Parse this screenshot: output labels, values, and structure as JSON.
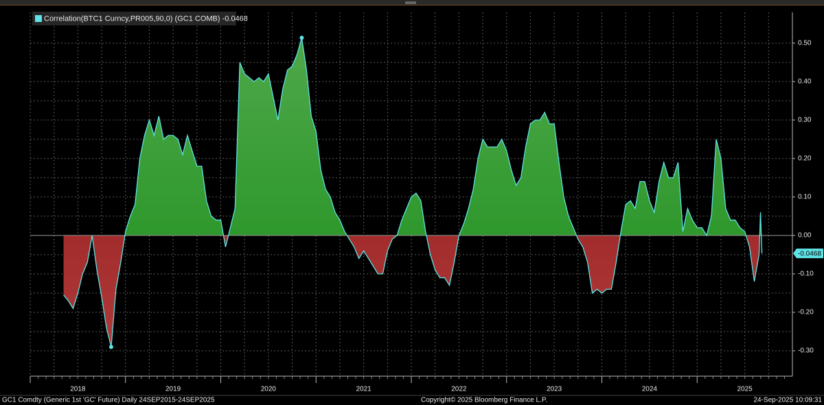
{
  "chart_data": {
    "type": "area",
    "legend_name": "Correlation(BTC1 Curncy,PR005,90,0) (GC1 COMB)",
    "footer_left": "GC1 Comdty (Generic 1st 'GC' Future)  Daily 24SEP2015-24SEP2025",
    "footer_center": "Copyright© 2025 Bloomberg Finance L.P.",
    "footer_right": "24-Sep-2025 10:09:31",
    "x": [
      2018.35,
      2018.4,
      2018.45,
      2018.5,
      2018.55,
      2018.6,
      2018.65,
      2018.7,
      2018.75,
      2018.8,
      2018.85,
      2018.9,
      2018.95,
      2019.0,
      2019.05,
      2019.1,
      2019.15,
      2019.2,
      2019.25,
      2019.3,
      2019.35,
      2019.4,
      2019.45,
      2019.5,
      2019.55,
      2019.6,
      2019.65,
      2019.7,
      2019.75,
      2019.8,
      2019.85,
      2019.9,
      2019.95,
      2020.0,
      2020.05,
      2020.1,
      2020.15,
      2020.2,
      2020.25,
      2020.3,
      2020.35,
      2020.4,
      2020.45,
      2020.5,
      2020.55,
      2020.6,
      2020.65,
      2020.7,
      2020.75,
      2020.8,
      2020.85,
      2020.9,
      2020.95,
      2021.0,
      2021.05,
      2021.1,
      2021.15,
      2021.2,
      2021.25,
      2021.3,
      2021.35,
      2021.4,
      2021.45,
      2021.5,
      2021.55,
      2021.6,
      2021.65,
      2021.7,
      2021.75,
      2021.8,
      2021.85,
      2021.9,
      2021.95,
      2022.0,
      2022.05,
      2022.1,
      2022.15,
      2022.2,
      2022.25,
      2022.3,
      2022.35,
      2022.4,
      2022.45,
      2022.5,
      2022.55,
      2022.6,
      2022.65,
      2022.7,
      2022.75,
      2022.8,
      2022.85,
      2022.9,
      2022.95,
      2023.0,
      2023.05,
      2023.1,
      2023.15,
      2023.2,
      2023.25,
      2023.3,
      2023.35,
      2023.4,
      2023.45,
      2023.5,
      2023.55,
      2023.6,
      2023.65,
      2023.7,
      2023.75,
      2023.8,
      2023.85,
      2023.9,
      2023.95,
      2024.0,
      2024.05,
      2024.1,
      2024.15,
      2024.2,
      2024.25,
      2024.3,
      2024.35,
      2024.4,
      2024.45,
      2024.5,
      2024.55,
      2024.6,
      2024.65,
      2024.7,
      2024.75,
      2024.8,
      2024.85,
      2024.9,
      2024.95,
      2025.0,
      2025.05,
      2025.1,
      2025.15,
      2025.2,
      2025.25,
      2025.3,
      2025.35,
      2025.4,
      2025.45,
      2025.5,
      2025.55,
      2025.6,
      2025.65,
      2025.665,
      2025.68
    ],
    "series": [
      {
        "name": "Correlation(BTC1 Curncy,PR005,90,0) (GC1 COMB)",
        "color": "#5fe3e6",
        "values": [
          -0.155,
          -0.17,
          -0.19,
          -0.15,
          -0.1,
          -0.07,
          0.0,
          -0.09,
          -0.16,
          -0.24,
          -0.29,
          -0.14,
          -0.07,
          0.01,
          0.05,
          0.08,
          0.2,
          0.26,
          0.3,
          0.26,
          0.31,
          0.25,
          0.26,
          0.26,
          0.25,
          0.21,
          0.26,
          0.22,
          0.18,
          0.18,
          0.09,
          0.05,
          0.04,
          0.04,
          -0.03,
          0.02,
          0.07,
          0.45,
          0.42,
          0.41,
          0.4,
          0.41,
          0.4,
          0.42,
          0.36,
          0.3,
          0.38,
          0.43,
          0.44,
          0.47,
          0.514,
          0.43,
          0.31,
          0.27,
          0.17,
          0.12,
          0.1,
          0.06,
          0.04,
          0.01,
          -0.01,
          -0.03,
          -0.06,
          -0.04,
          -0.06,
          -0.08,
          -0.1,
          -0.1,
          -0.04,
          -0.01,
          0.0,
          0.04,
          0.07,
          0.1,
          0.11,
          0.09,
          0.01,
          -0.05,
          -0.09,
          -0.11,
          -0.11,
          -0.13,
          -0.07,
          0.0,
          0.03,
          0.07,
          0.12,
          0.2,
          0.25,
          0.23,
          0.23,
          0.23,
          0.25,
          0.22,
          0.17,
          0.13,
          0.15,
          0.23,
          0.29,
          0.3,
          0.3,
          0.32,
          0.29,
          0.29,
          0.19,
          0.1,
          0.05,
          0.02,
          -0.01,
          -0.03,
          -0.07,
          -0.15,
          -0.14,
          -0.15,
          -0.14,
          -0.14,
          -0.07,
          0.01,
          0.08,
          0.09,
          0.07,
          0.14,
          0.14,
          0.09,
          0.06,
          0.14,
          0.19,
          0.15,
          0.15,
          0.19,
          0.01,
          0.07,
          0.04,
          0.02,
          0.02,
          0.0,
          0.05,
          0.25,
          0.2,
          0.07,
          0.04,
          0.04,
          0.02,
          0.01,
          -0.03,
          -0.12,
          -0.05,
          0.06,
          -0.0468
        ]
      }
    ],
    "positive_color": "#1c8f1c",
    "negative_color": "#8a1414",
    "xlim": [
      2018,
      2026
    ],
    "xticks": [
      2018,
      2019,
      2020,
      2021,
      2022,
      2023,
      2024,
      2025
    ],
    "ylim": [
      -0.366,
      0.58
    ],
    "yticks": [
      {
        "value": -0.3,
        "label": "-0.30"
      },
      {
        "value": -0.2,
        "label": "-0.20"
      },
      {
        "value": -0.1,
        "label": "-0.10"
      },
      {
        "value": 0,
        "label": "0.00"
      },
      {
        "value": 0.1,
        "label": "0.10"
      },
      {
        "value": 0.2,
        "label": "0.20"
      },
      {
        "value": 0.3,
        "label": "0.30"
      },
      {
        "value": 0.4,
        "label": "0.40"
      },
      {
        "value": 0.5,
        "label": "0.50"
      }
    ],
    "grid": true
  }
}
